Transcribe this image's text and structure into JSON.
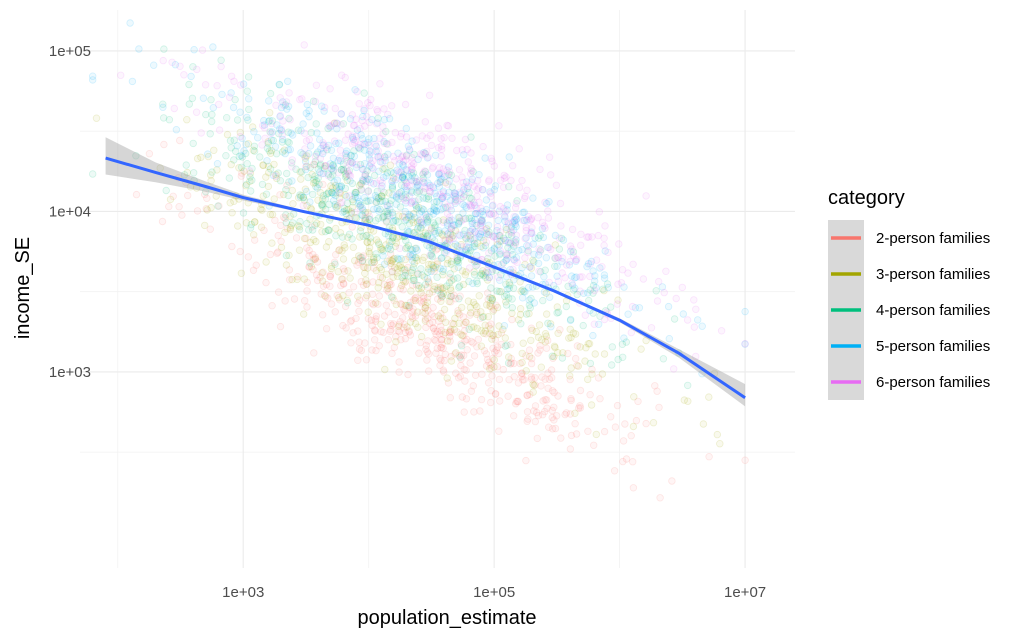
{
  "chart_data": {
    "type": "scatter",
    "xlabel": "population_estimate",
    "ylabel": "income_SE",
    "x_scale": "log10",
    "y_scale": "log10",
    "xlim": [
      50,
      25000000
    ],
    "ylim": [
      60,
      180000
    ],
    "x_ticks": [
      {
        "value": 1000,
        "label": "1e+03"
      },
      {
        "value": 100000,
        "label": "1e+05"
      },
      {
        "value": 10000000,
        "label": "1e+07"
      }
    ],
    "y_ticks": [
      {
        "value": 1000,
        "label": "1e+03"
      },
      {
        "value": 10000,
        "label": "1e+04"
      },
      {
        "value": 100000,
        "label": "1e+05"
      }
    ],
    "grid": true,
    "point_alpha": 0.1,
    "legend": {
      "title": "category",
      "position": "right"
    },
    "series": [
      {
        "name": "2-person families",
        "color": "#F8766D",
        "x_center_log10": 4.55,
        "x_sd_log10": 0.85,
        "slope": -0.39,
        "intercept_log10": 3.27,
        "y_sd_log10": 0.2,
        "n": 500
      },
      {
        "name": "3-person families",
        "color": "#A3A500",
        "x_center_log10": 4.3,
        "x_sd_log10": 0.85,
        "slope": -0.37,
        "intercept_log10": 3.6,
        "y_sd_log10": 0.22,
        "n": 500
      },
      {
        "name": "4-person families",
        "color": "#00BF7D",
        "x_center_log10": 4.25,
        "x_sd_log10": 0.85,
        "slope": -0.37,
        "intercept_log10": 3.85,
        "y_sd_log10": 0.22,
        "n": 500
      },
      {
        "name": "5-person families",
        "color": "#00B0F6",
        "x_center_log10": 4.4,
        "x_sd_log10": 0.85,
        "slope": -0.37,
        "intercept_log10": 4.02,
        "y_sd_log10": 0.2,
        "n": 500
      },
      {
        "name": "6-person families",
        "color": "#E76BF3",
        "x_center_log10": 4.6,
        "x_sd_log10": 0.85,
        "slope": -0.36,
        "intercept_log10": 4.16,
        "y_sd_log10": 0.2,
        "n": 500
      }
    ],
    "smooth": {
      "color": "#3366FF",
      "band_color": "#999999",
      "band_alpha": 0.4,
      "x": [
        80,
        200,
        500,
        1000,
        3000,
        10000,
        30000,
        100000,
        300000,
        1000000,
        3000000,
        10000000
      ],
      "y": [
        21500,
        17500,
        14300,
        12200,
        10000,
        8200,
        6500,
        4500,
        3200,
        2100,
        1300,
        690
      ],
      "lower": [
        17000,
        15200,
        13300,
        11700,
        9800,
        8050,
        6380,
        4430,
        3140,
        2040,
        1220,
        610
      ],
      "upper": [
        29000,
        20200,
        15400,
        12700,
        10200,
        8350,
        6620,
        4570,
        3260,
        2160,
        1380,
        840
      ]
    }
  }
}
